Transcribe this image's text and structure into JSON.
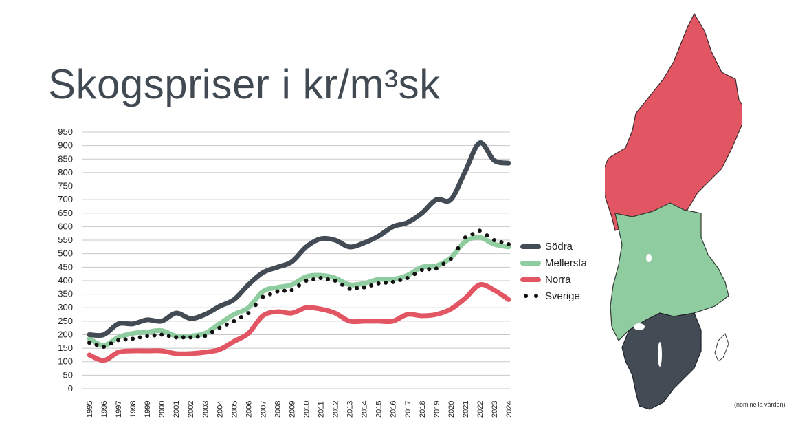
{
  "title": "Skogspriser i kr/m³sk",
  "note": "(nominella värden)",
  "chart_data": {
    "type": "line",
    "title": "Skogspriser i kr/m³sk",
    "xlabel": "",
    "ylabel": "",
    "ylim": [
      0,
      950
    ],
    "yticks": [
      0,
      50,
      100,
      150,
      200,
      250,
      300,
      350,
      400,
      450,
      500,
      550,
      600,
      650,
      700,
      750,
      800,
      850,
      900,
      950
    ],
    "grid": true,
    "legend_position": "right",
    "x": [
      "1995",
      "1996",
      "1997",
      "1998",
      "1999",
      "2000",
      "2001",
      "2002",
      "2003",
      "2004",
      "2005",
      "2006",
      "2007",
      "2008",
      "2009",
      "2010",
      "2011",
      "2012",
      "2013",
      "2014",
      "2015",
      "2016",
      "2017",
      "2018",
      "2019",
      "2020",
      "2021",
      "2022",
      "2023",
      "2024"
    ],
    "series": [
      {
        "name": "Södra",
        "color": "#434b55",
        "style": "line",
        "values": [
          200,
          200,
          240,
          240,
          255,
          250,
          280,
          260,
          275,
          305,
          330,
          385,
          430,
          450,
          470,
          525,
          555,
          550,
          525,
          540,
          565,
          600,
          615,
          650,
          700,
          700,
          805,
          910,
          845,
          835
        ]
      },
      {
        "name": "Mellersta",
        "color": "#8fcc9f",
        "style": "line",
        "values": [
          185,
          160,
          190,
          205,
          210,
          215,
          195,
          195,
          205,
          240,
          275,
          300,
          360,
          375,
          385,
          415,
          420,
          410,
          385,
          390,
          405,
          405,
          420,
          450,
          455,
          485,
          545,
          560,
          535,
          525
        ]
      },
      {
        "name": "Norra",
        "color": "#e25562",
        "style": "line",
        "values": [
          125,
          105,
          135,
          140,
          140,
          140,
          130,
          130,
          135,
          145,
          175,
          205,
          270,
          285,
          280,
          300,
          295,
          280,
          250,
          250,
          250,
          250,
          275,
          270,
          275,
          295,
          335,
          385,
          365,
          330
        ]
      },
      {
        "name": "Sverige",
        "color": "#111111",
        "style": "dotted",
        "values": [
          170,
          155,
          180,
          185,
          195,
          200,
          190,
          190,
          195,
          225,
          250,
          280,
          340,
          360,
          365,
          400,
          410,
          400,
          370,
          375,
          390,
          395,
          410,
          440,
          445,
          480,
          560,
          585,
          550,
          535
        ]
      }
    ]
  },
  "map": {
    "regions": [
      {
        "name": "Norra",
        "color": "#e25562"
      },
      {
        "name": "Mellersta",
        "color": "#8fcc9f"
      },
      {
        "name": "Södra",
        "color": "#434b55"
      }
    ]
  }
}
